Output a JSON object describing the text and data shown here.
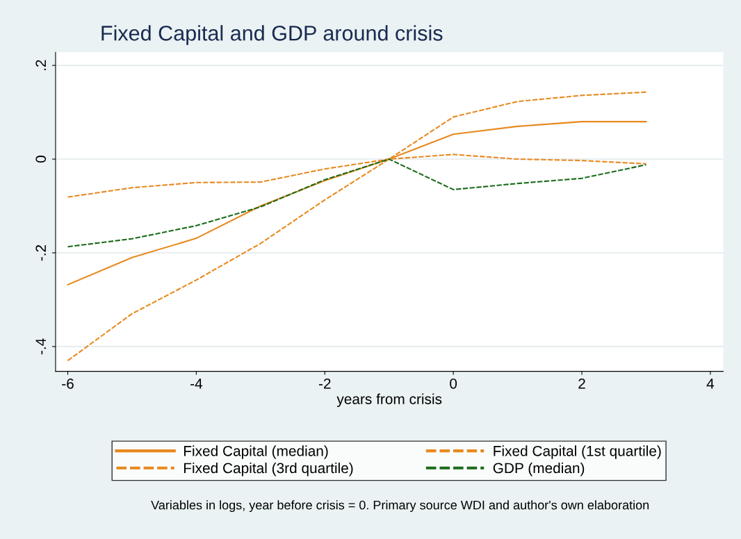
{
  "chart_data": {
    "type": "line",
    "title": "Fixed Capital and GDP around crisis",
    "xlabel": "years from crisis",
    "x": [
      -6,
      -5,
      -4,
      -3,
      -2,
      -1,
      0,
      1,
      2,
      3
    ],
    "series": [
      {
        "name": "Fixed Capital (median)",
        "color": "#e8891e",
        "line_style": "solid",
        "values": [
          -0.268,
          -0.21,
          -0.169,
          -0.1,
          -0.046,
          0,
          0.053,
          0.07,
          0.08,
          0.08
        ]
      },
      {
        "name": "Fixed Capital (1st quartile)",
        "color": "#e8891e",
        "line_style": "dashed",
        "values": [
          -0.43,
          -0.33,
          -0.258,
          -0.18,
          -0.087,
          0,
          0.09,
          0.123,
          0.136,
          0.143
        ]
      },
      {
        "name": "Fixed Capital (3rd quartile)",
        "color": "#e8891e",
        "line_style": "dashed",
        "values": [
          -0.081,
          -0.061,
          -0.05,
          -0.049,
          -0.021,
          0,
          0.01,
          0,
          -0.003,
          -0.01
        ]
      },
      {
        "name": "GDP (median)",
        "color": "#1a6b1a",
        "line_style": "dashed",
        "values": [
          -0.187,
          -0.17,
          -0.142,
          -0.102,
          -0.044,
          0,
          -0.065,
          -0.052,
          -0.041,
          -0.012
        ]
      }
    ],
    "xlim": [
      -6.19,
      4.2
    ],
    "ylim": [
      -0.453,
      0.228
    ],
    "xticks": [
      -6,
      -4,
      -2,
      0,
      2,
      4
    ],
    "yticks": [
      {
        "value": -0.4,
        "label": "-.4"
      },
      {
        "value": -0.2,
        "label": "-.2"
      },
      {
        "value": 0,
        "label": "0"
      },
      {
        "value": 0.2,
        "label": ".2"
      }
    ],
    "grid": "y",
    "legend": "bottom",
    "marker": "none",
    "annotations": [
      "Variables in logs, year before crisis = 0. Primary source WDI and author's own elaboration"
    ]
  }
}
